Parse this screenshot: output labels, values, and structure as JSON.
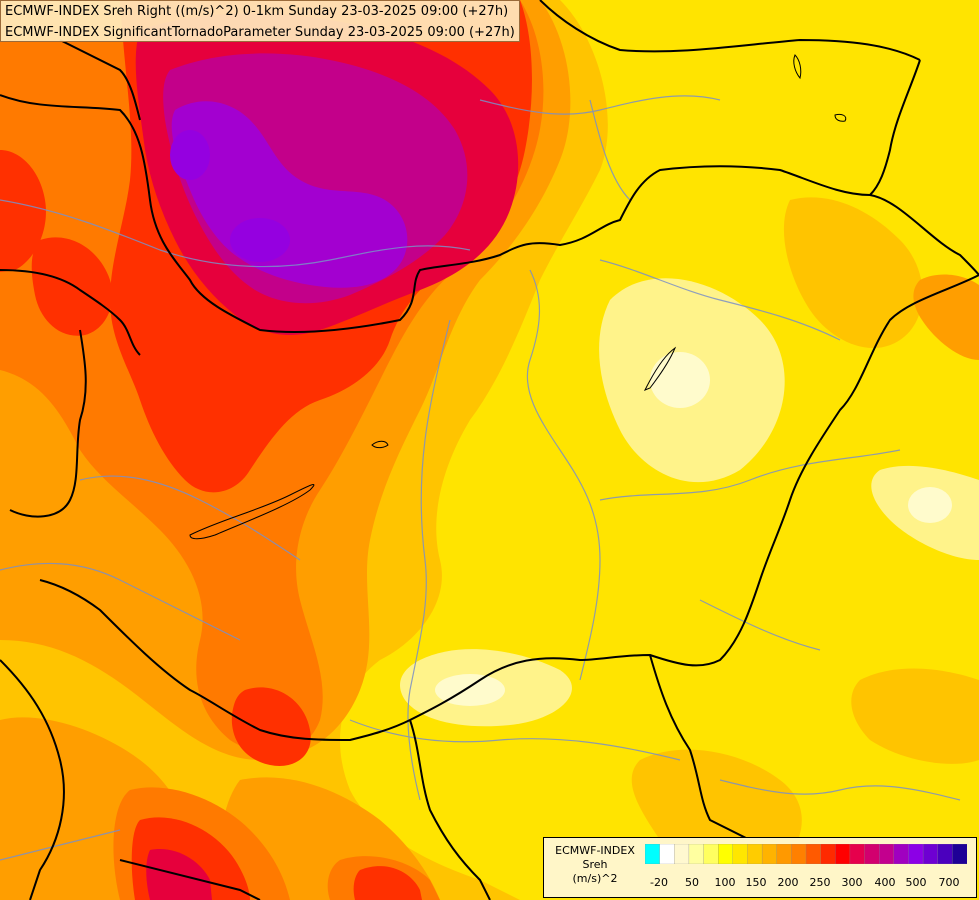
{
  "title_lines": [
    "ECMWF-INDEX Sreh Right ((m/s)^2) 0-1km Sunday 23-03-2025 09:00 (+27h)",
    "ECMWF-INDEX SignificantTornadoParameter Sunday 23-03-2025 09:00 (+27h)"
  ],
  "legend": {
    "line1": "ECMWF-INDEX",
    "line2": "Sreh",
    "line3": "(m/s)^2",
    "swatch_colors": [
      "#00ffff",
      "#ffffff",
      "#fff8d0",
      "#ffffa0",
      "#ffff60",
      "#ffff00",
      "#ffe600",
      "#ffcc00",
      "#ffb300",
      "#ff9900",
      "#ff8000",
      "#ff5a00",
      "#ff2a00",
      "#ff0000",
      "#e6004c",
      "#d2006e",
      "#c3008e",
      "#a000c0",
      "#8c00e6",
      "#6e00d2",
      "#4b00be",
      "#1e0096"
    ],
    "tick_labels": [
      "-20",
      "50",
      "100",
      "150",
      "200",
      "250",
      "300",
      "400",
      "500",
      "700"
    ]
  },
  "colors": {
    "yellow": "#ffee00",
    "light_yellow": "#fff5a0",
    "orange_light": "#ffc200",
    "orange": "#ff9c00",
    "orange_dark": "#ff7800",
    "red": "#ff2800",
    "crimson": "#e60040",
    "magenta": "#c3008c",
    "purple": "#a000d2",
    "border": "#000000",
    "river": "#6e8cc8"
  }
}
